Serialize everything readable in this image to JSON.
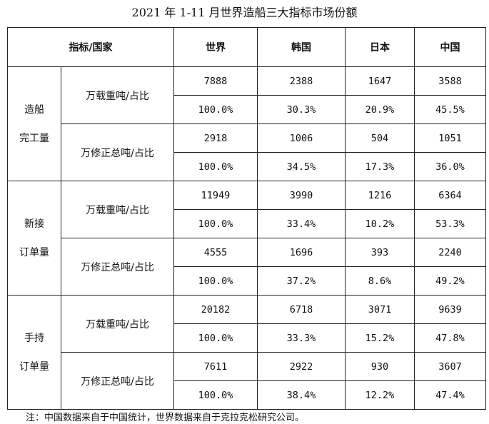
{
  "title": "2021 年 1-11 月世界造船三大指标市场份额",
  "table": {
    "header": {
      "label": "指标/国家",
      "columns": [
        "世界",
        "韩国",
        "日本",
        "中国"
      ]
    },
    "groups": [
      {
        "label_lines": [
          "造船",
          "完工量"
        ],
        "metrics": [
          {
            "label": "万载重吨/占比",
            "rows": [
              [
                "7888",
                "2388",
                "1647",
                "3588"
              ],
              [
                "100.0%",
                "30.3%",
                "20.9%",
                "45.5%"
              ]
            ]
          },
          {
            "label": "万修正总吨/占比",
            "rows": [
              [
                "2918",
                "1006",
                "504",
                "1051"
              ],
              [
                "100.0%",
                "34.5%",
                "17.3%",
                "36.0%"
              ]
            ]
          }
        ]
      },
      {
        "label_lines": [
          "新接",
          "订单量"
        ],
        "metrics": [
          {
            "label": "万载重吨/占比",
            "rows": [
              [
                "11949",
                "3990",
                "1216",
                "6364"
              ],
              [
                "100.0%",
                "33.4%",
                "10.2%",
                "53.3%"
              ]
            ]
          },
          {
            "label": "万修正总吨/占比",
            "rows": [
              [
                "4555",
                "1696",
                "393",
                "2240"
              ],
              [
                "100.0%",
                "37.2%",
                "8.6%",
                "49.2%"
              ]
            ]
          }
        ]
      },
      {
        "label_lines": [
          "手持",
          "订单量"
        ],
        "metrics": [
          {
            "label": "万载重吨/占比",
            "rows": [
              [
                "20182",
                "6718",
                "3071",
                "9639"
              ],
              [
                "100.0%",
                "33.3%",
                "15.2%",
                "47.8%"
              ]
            ]
          },
          {
            "label": "万修正总吨/占比",
            "rows": [
              [
                "7611",
                "2922",
                "930",
                "3607"
              ],
              [
                "100.0%",
                "38.4%",
                "12.2%",
                "47.4%"
              ]
            ]
          }
        ]
      }
    ]
  },
  "note": "注：中国数据来自于中国统计，世界数据来自于克拉克松研究公司。"
}
